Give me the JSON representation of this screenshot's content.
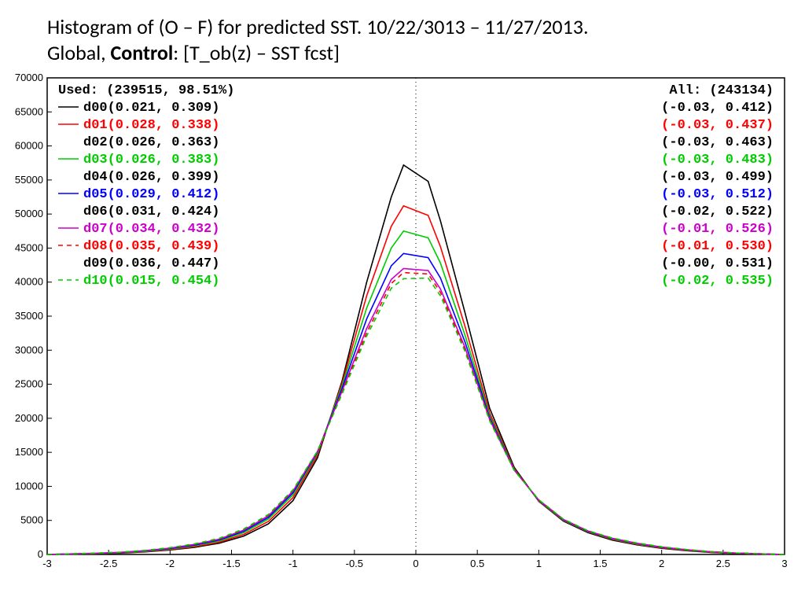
{
  "title": {
    "line1": "Histogram of (O – F) for predicted SST. 10/22/3013 – 11/27/2013.",
    "line2_pre": "Global, ",
    "line2_bold": "Control",
    "line2_post": ": [T_ob(z) – SST fcst]"
  },
  "chart": {
    "type": "line",
    "xlim": [
      -3,
      3
    ],
    "ylim": [
      0,
      70000
    ],
    "xticks": [
      -3,
      -2.5,
      -2,
      -1.5,
      -1,
      -0.5,
      0,
      0.5,
      1,
      1.5,
      2,
      2.5,
      3
    ],
    "yticks": [
      0,
      5000,
      10000,
      15000,
      20000,
      25000,
      30000,
      35000,
      40000,
      45000,
      50000,
      55000,
      60000,
      65000,
      70000
    ],
    "background_color": "#ffffff",
    "axis_color": "#000000",
    "tick_fontsize": 13,
    "vline_x": 0,
    "vline_style": "1,4",
    "legend_left_header": "Used: (239515, 98.51%)",
    "legend_right_header": "All: (243134)",
    "xbins": [
      -3,
      -2.8,
      -2.6,
      -2.4,
      -2.2,
      -2,
      -1.8,
      -1.6,
      -1.4,
      -1.2,
      -1,
      -0.8,
      -0.6,
      -0.4,
      -0.2,
      -0.1,
      0.1,
      0.2,
      0.4,
      0.6,
      0.8,
      1,
      1.2,
      1.4,
      1.6,
      1.8,
      2,
      2.2,
      2.4,
      2.6,
      2.8,
      3
    ],
    "series": [
      {
        "id": "d00",
        "color": "#000000",
        "dash": "",
        "left": "d00(0.021, 0.309)",
        "right": "(-0.03, 0.412)",
        "y": [
          0,
          50,
          100,
          200,
          380,
          650,
          1050,
          1650,
          2700,
          4500,
          7900,
          14200,
          25500,
          40000,
          52500,
          57200,
          54800,
          49000,
          35500,
          21500,
          12800,
          7800,
          4900,
          3200,
          2100,
          1400,
          900,
          550,
          300,
          150,
          70,
          0
        ]
      },
      {
        "id": "d01",
        "color": "#ff0000",
        "dash": "",
        "left": "d01(0.028, 0.338)",
        "right": "(-0.03, 0.437)",
        "y": [
          0,
          60,
          120,
          230,
          420,
          720,
          1150,
          1800,
          2950,
          4850,
          8350,
          14600,
          25200,
          38000,
          48200,
          51200,
          49800,
          45200,
          33500,
          20800,
          12600,
          7850,
          5000,
          3300,
          2200,
          1480,
          960,
          600,
          330,
          170,
          80,
          0
        ]
      },
      {
        "id": "d02",
        "color": "#000000",
        "dash": "",
        "left": "d02(0.026, 0.363)",
        "right": "(-0.03, 0.463)",
        "y": null
      },
      {
        "id": "d03",
        "color": "#00cc00",
        "dash": "",
        "left": "d03(0.026, 0.383)",
        "right": "(-0.03, 0.483)",
        "y": [
          0,
          70,
          140,
          260,
          470,
          800,
          1280,
          1980,
          3200,
          5200,
          8750,
          14900,
          24800,
          36200,
          45000,
          47500,
          46500,
          42800,
          32200,
          20400,
          12500,
          7900,
          5050,
          3350,
          2260,
          1540,
          1010,
          640,
          360,
          190,
          90,
          0
        ]
      },
      {
        "id": "d04",
        "color": "#000000",
        "dash": "",
        "left": "d04(0.026, 0.399)",
        "right": "(-0.03, 0.499)",
        "y": null
      },
      {
        "id": "d05",
        "color": "#0000ff",
        "dash": "",
        "left": "d05(0.029, 0.412)",
        "right": "(-0.03, 0.512)",
        "y": [
          0,
          80,
          160,
          290,
          520,
          870,
          1380,
          2120,
          3400,
          5450,
          9050,
          15050,
          24400,
          34600,
          42400,
          44200,
          43600,
          40600,
          31200,
          20100,
          12450,
          7950,
          5100,
          3400,
          2310,
          1590,
          1050,
          670,
          380,
          200,
          95,
          0
        ]
      },
      {
        "id": "d06",
        "color": "#000000",
        "dash": "",
        "left": "d06(0.031, 0.424)",
        "right": "(-0.02, 0.522)",
        "y": null
      },
      {
        "id": "d07",
        "color": "#cc00cc",
        "dash": "",
        "left": "d07(0.034, 0.432)",
        "right": "(-0.01, 0.526)",
        "y": [
          0,
          90,
          180,
          320,
          570,
          940,
          1480,
          2250,
          3580,
          5680,
          9300,
          15150,
          24000,
          33200,
          40400,
          42000,
          41700,
          39000,
          30400,
          19850,
          12400,
          8000,
          5150,
          3450,
          2360,
          1640,
          1090,
          700,
          400,
          210,
          100,
          0
        ]
      },
      {
        "id": "d08",
        "color": "#ff0000",
        "dash": "6,5",
        "left": "d08(0.035, 0.439)",
        "right": "(-0.01, 0.530)",
        "y": [
          0,
          95,
          190,
          330,
          590,
          970,
          1520,
          2310,
          3660,
          5780,
          9400,
          15180,
          23800,
          32600,
          39800,
          41400,
          41200,
          38500,
          30100,
          19750,
          12380,
          8020,
          5170,
          3470,
          2380,
          1660,
          1110,
          715,
          410,
          215,
          103,
          0
        ]
      },
      {
        "id": "d09",
        "color": "#000000",
        "dash": "",
        "left": "d09(0.036, 0.447)",
        "right": "(-0.00, 0.531)",
        "y": null
      },
      {
        "id": "d10",
        "color": "#00cc00",
        "dash": "6,5",
        "left": "d10(0.015, 0.454)",
        "right": "(-0.02, 0.535)",
        "y": [
          0,
          100,
          200,
          345,
          610,
          1000,
          1560,
          2370,
          3740,
          5870,
          9480,
          15200,
          23600,
          32100,
          39100,
          40500,
          40600,
          38000,
          29800,
          19650,
          12360,
          8040,
          5190,
          3490,
          2400,
          1680,
          1130,
          730,
          420,
          220,
          106,
          0
        ]
      }
    ]
  }
}
